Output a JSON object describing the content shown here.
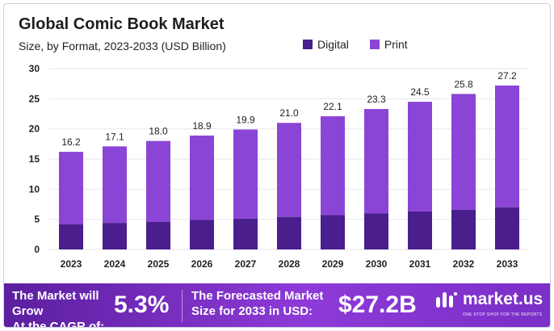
{
  "header": {
    "title": "Global Comic Book Market",
    "subtitle": "Size, by Format, 2023-2033 (USD Billion)"
  },
  "legend": {
    "digital": "Digital",
    "print": "Print"
  },
  "colors": {
    "digital": "#4a1e8c",
    "print": "#8b45d6",
    "grid": "#e6e6ee"
  },
  "chart_data": {
    "type": "bar",
    "stacked": true,
    "categories": [
      "2023",
      "2024",
      "2025",
      "2026",
      "2027",
      "2028",
      "2029",
      "2030",
      "2031",
      "2032",
      "2033"
    ],
    "series": [
      {
        "name": "Digital",
        "values": [
          4.2,
          4.4,
          4.6,
          4.9,
          5.1,
          5.4,
          5.7,
          6.0,
          6.3,
          6.6,
          7.0
        ]
      },
      {
        "name": "Print",
        "values": [
          12.0,
          12.7,
          13.4,
          14.0,
          14.8,
          15.6,
          16.4,
          17.3,
          18.2,
          19.2,
          20.2
        ]
      }
    ],
    "totals": [
      "16.2",
      "17.1",
      "18.0",
      "18.9",
      "19.9",
      "21.0",
      "22.1",
      "23.3",
      "24.5",
      "25.8",
      "27.2"
    ],
    "ylim": [
      0,
      30
    ],
    "yticks": [
      "0",
      "5",
      "10",
      "15",
      "20",
      "25",
      "30"
    ],
    "grid": true,
    "legend_position": "top-right"
  },
  "footer": {
    "grow_text_line1": "The Market will Grow",
    "grow_text_line2": "At the CAGR of:",
    "cagr": "5.3%",
    "forecast_text_line1": "The Forecasted Market",
    "forecast_text_line2": "Size for 2033 in USD:",
    "forecast_value": "$27.2B",
    "logo_text": "market.us",
    "logo_tagline": "ONE STOP SHOP FOR THE REPORTS",
    "logo_icon": "market-us-logo-icon"
  }
}
